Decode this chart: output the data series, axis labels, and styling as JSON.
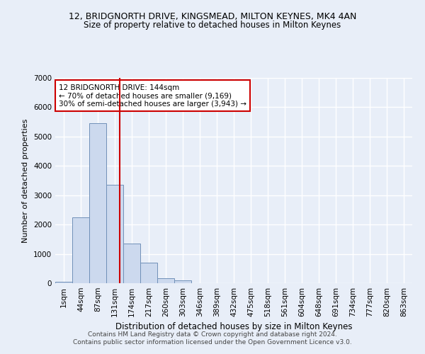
{
  "title1": "12, BRIDGNORTH DRIVE, KINGSMEAD, MILTON KEYNES, MK4 4AN",
  "title2": "Size of property relative to detached houses in Milton Keynes",
  "xlabel": "Distribution of detached houses by size in Milton Keynes",
  "ylabel": "Number of detached properties",
  "footer1": "Contains HM Land Registry data © Crown copyright and database right 2024.",
  "footer2": "Contains public sector information licensed under the Open Government Licence v3.0.",
  "categories": [
    "1sqm",
    "44sqm",
    "87sqm",
    "131sqm",
    "174sqm",
    "217sqm",
    "260sqm",
    "303sqm",
    "346sqm",
    "389sqm",
    "432sqm",
    "475sqm",
    "518sqm",
    "561sqm",
    "604sqm",
    "648sqm",
    "691sqm",
    "734sqm",
    "777sqm",
    "820sqm",
    "863sqm"
  ],
  "values": [
    50,
    2250,
    5450,
    3350,
    1350,
    700,
    170,
    90,
    0,
    0,
    0,
    0,
    0,
    0,
    0,
    0,
    0,
    0,
    0,
    0,
    0
  ],
  "bar_color": "#ccd9ee",
  "bar_edge_color": "#7090b8",
  "vline_color": "#cc0000",
  "vline_pos": 3.3,
  "annotation_text": "12 BRIDGNORTH DRIVE: 144sqm\n← 70% of detached houses are smaller (9,169)\n30% of semi-detached houses are larger (3,943) →",
  "annotation_box_color": "#ffffff",
  "annotation_edge_color": "#cc0000",
  "ylim": [
    0,
    7000
  ],
  "yticks": [
    0,
    1000,
    2000,
    3000,
    4000,
    5000,
    6000,
    7000
  ],
  "bg_color": "#e8eef8",
  "plot_bg_color": "#e8eef8",
  "grid_color": "#ffffff",
  "title1_fontsize": 9,
  "title2_fontsize": 8.5,
  "xlabel_fontsize": 8.5,
  "ylabel_fontsize": 8,
  "tick_fontsize": 7.5,
  "footer_fontsize": 6.5
}
